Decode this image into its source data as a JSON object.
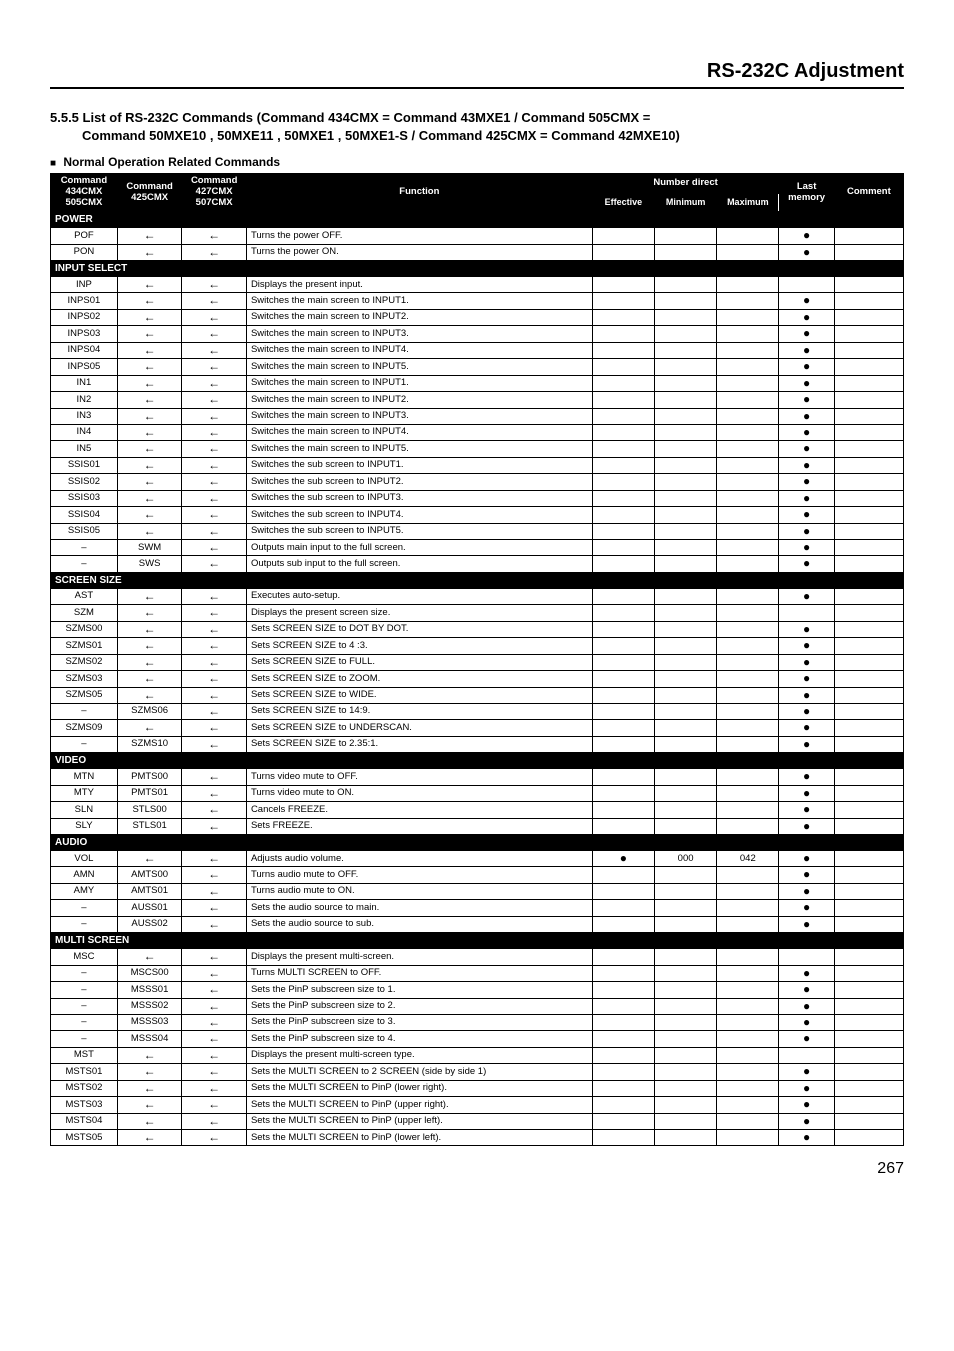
{
  "page_title": "RS-232C Adjustment",
  "section_title_line1": "5.5.5 List of RS-232C Commands (Command 434CMX = Command 43MXE1 / Command 505CMX =",
  "section_title_line2": "Command 50MXE10 , 50MXE11 , 50MXE1 , 50MXE1-S / Command 425CMX = Command 42MXE10)",
  "subhead": "Normal Operation Related Commands",
  "headers": {
    "cmd_a": "Command 434CMX 505CMX",
    "cmd_b": "Command 425CMX",
    "cmd_c": "Command 427CMX 507CMX",
    "func": "Function",
    "nd": "Number direct",
    "eff": "Effective",
    "min": "Minimum",
    "max": "Maximum",
    "last": "Last memory",
    "comment": "Comment"
  },
  "arrow": "←",
  "dot": "●",
  "sections": [
    {
      "name": "POWER",
      "rows": [
        {
          "a": "POF",
          "b": "←",
          "c": "←",
          "f": "Turns the power OFF.",
          "last": true
        },
        {
          "a": "PON",
          "b": "←",
          "c": "←",
          "f": "Turns the power ON.",
          "last": true
        }
      ]
    },
    {
      "name": "INPUT SELECT",
      "rows": [
        {
          "a": "INP",
          "b": "←",
          "c": "←",
          "f": "Displays the present input."
        },
        {
          "a": "INPS01",
          "b": "←",
          "c": "←",
          "f": "Switches the main screen to INPUT1.",
          "last": true
        },
        {
          "a": "INPS02",
          "b": "←",
          "c": "←",
          "f": "Switches the main screen to INPUT2.",
          "last": true
        },
        {
          "a": "INPS03",
          "b": "←",
          "c": "←",
          "f": "Switches the main screen to INPUT3.",
          "last": true
        },
        {
          "a": "INPS04",
          "b": "←",
          "c": "←",
          "f": "Switches the main screen to INPUT4.",
          "last": true
        },
        {
          "a": "INPS05",
          "b": "←",
          "c": "←",
          "f": "Switches the main screen to INPUT5.",
          "last": true
        },
        {
          "a": "IN1",
          "b": "←",
          "c": "←",
          "f": "Switches the main screen to INPUT1.",
          "last": true
        },
        {
          "a": "IN2",
          "b": "←",
          "c": "←",
          "f": "Switches the main screen to INPUT2.",
          "last": true
        },
        {
          "a": "IN3",
          "b": "←",
          "c": "←",
          "f": "Switches the main screen to INPUT3.",
          "last": true
        },
        {
          "a": "IN4",
          "b": "←",
          "c": "←",
          "f": "Switches the main screen to INPUT4.",
          "last": true
        },
        {
          "a": "IN5",
          "b": "←",
          "c": "←",
          "f": "Switches the main screen to INPUT5.",
          "last": true
        },
        {
          "a": "SSIS01",
          "b": "←",
          "c": "←",
          "f": "Switches the sub screen to INPUT1.",
          "last": true
        },
        {
          "a": "SSIS02",
          "b": "←",
          "c": "←",
          "f": "Switches the sub screen to INPUT2.",
          "last": true
        },
        {
          "a": "SSIS03",
          "b": "←",
          "c": "←",
          "f": "Switches the sub screen to INPUT3.",
          "last": true
        },
        {
          "a": "SSIS04",
          "b": "←",
          "c": "←",
          "f": "Switches the sub screen to INPUT4.",
          "last": true
        },
        {
          "a": "SSIS05",
          "b": "←",
          "c": "←",
          "f": "Switches the sub screen to INPUT5.",
          "last": true
        },
        {
          "a": "–",
          "b": "SWM",
          "c": "←",
          "f": "Outputs main input to the full screen.",
          "last": true
        },
        {
          "a": "–",
          "b": "SWS",
          "c": "←",
          "f": "Outputs sub input to the full screen.",
          "last": true
        }
      ]
    },
    {
      "name": "SCREEN SIZE",
      "rows": [
        {
          "a": "AST",
          "b": "←",
          "c": "←",
          "f": "Executes auto-setup.",
          "last": true
        },
        {
          "a": "SZM",
          "b": "←",
          "c": "←",
          "f": "Displays the present screen size."
        },
        {
          "a": "SZMS00",
          "b": "←",
          "c": "←",
          "f": "Sets SCREEN SIZE to DOT BY DOT.",
          "last": true
        },
        {
          "a": "SZMS01",
          "b": "←",
          "c": "←",
          "f": "Sets SCREEN SIZE to 4 :3.",
          "last": true
        },
        {
          "a": "SZMS02",
          "b": "←",
          "c": "←",
          "f": "Sets SCREEN SIZE to FULL.",
          "last": true
        },
        {
          "a": "SZMS03",
          "b": "←",
          "c": "←",
          "f": "Sets SCREEN SIZE to ZOOM.",
          "last": true
        },
        {
          "a": "SZMS05",
          "b": "←",
          "c": "←",
          "f": "Sets SCREEN SIZE to WIDE.",
          "last": true
        },
        {
          "a": "–",
          "b": "SZMS06",
          "c": "←",
          "f": "Sets SCREEN SIZE to 14:9.",
          "last": true
        },
        {
          "a": "SZMS09",
          "b": "←",
          "c": "←",
          "f": "Sets SCREEN SIZE to UNDERSCAN.",
          "last": true
        },
        {
          "a": "–",
          "b": "SZMS10",
          "c": "←",
          "f": "Sets SCREEN SIZE to 2.35:1.",
          "last": true
        }
      ]
    },
    {
      "name": "VIDEO",
      "rows": [
        {
          "a": "MTN",
          "b": "PMTS00",
          "c": "←",
          "f": "Turns video mute to OFF.",
          "last": true
        },
        {
          "a": "MTY",
          "b": "PMTS01",
          "c": "←",
          "f": "Turns video mute to ON.",
          "last": true
        },
        {
          "a": "SLN",
          "b": "STLS00",
          "c": "←",
          "f": "Cancels FREEZE.",
          "last": true
        },
        {
          "a": "SLY",
          "b": "STLS01",
          "c": "←",
          "f": "Sets FREEZE.",
          "last": true
        }
      ]
    },
    {
      "name": "AUDIO",
      "rows": [
        {
          "a": "VOL",
          "b": "←",
          "c": "←",
          "f": "Adjusts audio volume.",
          "eff": true,
          "min": "000",
          "max": "042",
          "last": true
        },
        {
          "a": "AMN",
          "b": "AMTS00",
          "c": "←",
          "f": "Turns audio mute to OFF.",
          "last": true
        },
        {
          "a": "AMY",
          "b": "AMTS01",
          "c": "←",
          "f": "Turns audio mute to ON.",
          "last": true
        },
        {
          "a": "–",
          "b": "AUSS01",
          "c": "←",
          "f": "Sets the audio source to main.",
          "last": true
        },
        {
          "a": "–",
          "b": "AUSS02",
          "c": "←",
          "f": "Sets the audio source to sub.",
          "last": true
        }
      ]
    },
    {
      "name": "MULTI SCREEN",
      "rows": [
        {
          "a": "MSC",
          "b": "←",
          "c": "←",
          "f": "Displays the present multi-screen."
        },
        {
          "a": "–",
          "b": "MSCS00",
          "c": "←",
          "f": "Turns MULTI SCREEN to OFF.",
          "last": true
        },
        {
          "a": "–",
          "b": "MSSS01",
          "c": "←",
          "f": "Sets the PinP subscreen size to 1.",
          "last": true
        },
        {
          "a": "–",
          "b": "MSSS02",
          "c": "←",
          "f": "Sets the PinP subscreen size to 2.",
          "last": true
        },
        {
          "a": "–",
          "b": "MSSS03",
          "c": "←",
          "f": "Sets the PinP subscreen size to 3.",
          "last": true
        },
        {
          "a": "–",
          "b": "MSSS04",
          "c": "←",
          "f": "Sets the PinP subscreen size to 4.",
          "last": true
        },
        {
          "a": "MST",
          "b": "←",
          "c": "←",
          "f": "Displays the present multi-screen type."
        },
        {
          "a": "MSTS01",
          "b": "←",
          "c": "←",
          "f": "Sets the MULTI SCREEN to 2 SCREEN (side by side 1)",
          "last": true
        },
        {
          "a": "MSTS02",
          "b": "←",
          "c": "←",
          "f": "Sets the MULTI SCREEN to PinP (lower right).",
          "last": true
        },
        {
          "a": "MSTS03",
          "b": "←",
          "c": "←",
          "f": "Sets the MULTI SCREEN to PinP (upper right).",
          "last": true
        },
        {
          "a": "MSTS04",
          "b": "←",
          "c": "←",
          "f": "Sets the MULTI SCREEN to PinP (upper left).",
          "last": true
        },
        {
          "a": "MSTS05",
          "b": "←",
          "c": "←",
          "f": "Sets the MULTI SCREEN to PinP (lower left).",
          "last": true
        }
      ]
    }
  ],
  "page_number": "267"
}
